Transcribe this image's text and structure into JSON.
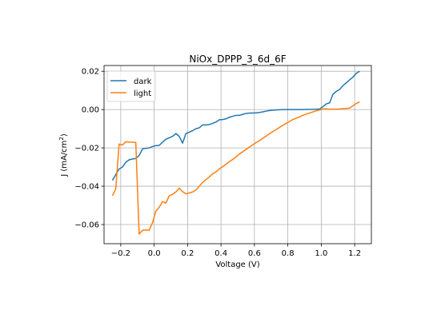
{
  "chart_data": {
    "type": "line",
    "title": "NiOx_DPPP_3_6d_6F",
    "xlabel": "Voltage (V)",
    "ylabel_main": "J (mA/cm",
    "ylabel_sup": "2",
    "ylabel_close": ")",
    "xlim": [
      -0.3,
      1.3
    ],
    "ylim": [
      -0.07,
      0.023
    ],
    "xticks": [
      -0.2,
      0.0,
      0.2,
      0.4,
      0.6,
      0.8,
      1.0,
      1.2
    ],
    "xtick_labels": [
      "−0.2",
      "0.0",
      "0.2",
      "0.4",
      "0.6",
      "0.8",
      "1.0",
      "1.2"
    ],
    "yticks": [
      -0.06,
      -0.04,
      -0.02,
      0.0,
      0.02
    ],
    "ytick_labels": [
      "−0.06",
      "−0.04",
      "−0.02",
      "0.00",
      "0.02"
    ],
    "grid": true,
    "legend_position": "top-left",
    "series": [
      {
        "name": "dark",
        "color": "#1f77b4",
        "points": [
          [
            -0.25,
            -0.037
          ],
          [
            -0.23,
            -0.034
          ],
          [
            -0.21,
            -0.031
          ],
          [
            -0.19,
            -0.03
          ],
          [
            -0.17,
            -0.0275
          ],
          [
            -0.15,
            -0.0262
          ],
          [
            -0.13,
            -0.0258
          ],
          [
            -0.11,
            -0.0255
          ],
          [
            -0.09,
            -0.024
          ],
          [
            -0.07,
            -0.0205
          ],
          [
            -0.05,
            -0.0202
          ],
          [
            -0.03,
            -0.02
          ],
          [
            -0.01,
            -0.0193
          ],
          [
            0.01,
            -0.0188
          ],
          [
            0.03,
            -0.0187
          ],
          [
            0.05,
            -0.017
          ],
          [
            0.07,
            -0.0155
          ],
          [
            0.09,
            -0.0147
          ],
          [
            0.11,
            -0.014
          ],
          [
            0.13,
            -0.0125
          ],
          [
            0.15,
            -0.014
          ],
          [
            0.17,
            -0.0175
          ],
          [
            0.19,
            -0.0125
          ],
          [
            0.21,
            -0.0118
          ],
          [
            0.23,
            -0.011
          ],
          [
            0.25,
            -0.01
          ],
          [
            0.27,
            -0.0095
          ],
          [
            0.29,
            -0.008
          ],
          [
            0.31,
            -0.008
          ],
          [
            0.33,
            -0.0078
          ],
          [
            0.35,
            -0.0072
          ],
          [
            0.37,
            -0.0065
          ],
          [
            0.39,
            -0.0053
          ],
          [
            0.41,
            -0.0052
          ],
          [
            0.43,
            -0.0048
          ],
          [
            0.45,
            -0.004
          ],
          [
            0.47,
            -0.0035
          ],
          [
            0.49,
            -0.003
          ],
          [
            0.51,
            -0.003
          ],
          [
            0.53,
            -0.0025
          ],
          [
            0.55,
            -0.002
          ],
          [
            0.57,
            -0.0018
          ],
          [
            0.59,
            -0.0018
          ],
          [
            0.61,
            -0.0017
          ],
          [
            0.63,
            -0.0015
          ],
          [
            0.65,
            -0.0012
          ],
          [
            0.67,
            -0.0008
          ],
          [
            0.69,
            -0.0005
          ],
          [
            0.71,
            -0.0003
          ],
          [
            0.73,
            -0.0002
          ],
          [
            0.75,
            -0.0001
          ],
          [
            0.77,
            0.0
          ],
          [
            0.79,
            0.0
          ],
          [
            0.81,
            0.0
          ],
          [
            0.83,
            0.0
          ],
          [
            0.85,
            0.0
          ],
          [
            0.87,
            0.0
          ],
          [
            0.89,
            0.0
          ],
          [
            0.91,
            0.0001
          ],
          [
            0.93,
            0.0001
          ],
          [
            0.95,
            0.0001
          ],
          [
            0.97,
            0.0002
          ],
          [
            0.99,
            0.0003
          ],
          [
            1.01,
            0.0015
          ],
          [
            1.03,
            0.003
          ],
          [
            1.05,
            0.0035
          ],
          [
            1.07,
            0.008
          ],
          [
            1.09,
            0.0095
          ],
          [
            1.11,
            0.0105
          ],
          [
            1.13,
            0.0125
          ],
          [
            1.15,
            0.014
          ],
          [
            1.17,
            0.0155
          ],
          [
            1.19,
            0.017
          ],
          [
            1.21,
            0.019
          ],
          [
            1.23,
            0.02
          ]
        ]
      },
      {
        "name": "light",
        "color": "#ff7f0e",
        "points": [
          [
            -0.25,
            -0.045
          ],
          [
            -0.23,
            -0.0415
          ],
          [
            -0.21,
            -0.018
          ],
          [
            -0.19,
            -0.0185
          ],
          [
            -0.17,
            -0.0168
          ],
          [
            -0.15,
            -0.017
          ],
          [
            -0.13,
            -0.017
          ],
          [
            -0.11,
            -0.0172
          ],
          [
            -0.09,
            -0.065
          ],
          [
            -0.07,
            -0.063
          ],
          [
            -0.05,
            -0.0628
          ],
          [
            -0.03,
            -0.063
          ],
          [
            -0.01,
            -0.059
          ],
          [
            0.01,
            -0.053
          ],
          [
            0.03,
            -0.051
          ],
          [
            0.05,
            -0.048
          ],
          [
            0.07,
            -0.0488
          ],
          [
            0.09,
            -0.045
          ],
          [
            0.11,
            -0.0442
          ],
          [
            0.13,
            -0.043
          ],
          [
            0.15,
            -0.041
          ],
          [
            0.17,
            -0.0428
          ],
          [
            0.19,
            -0.044
          ],
          [
            0.21,
            -0.0435
          ],
          [
            0.23,
            -0.043
          ],
          [
            0.25,
            -0.042
          ],
          [
            0.27,
            -0.04
          ],
          [
            0.29,
            -0.038
          ],
          [
            0.31,
            -0.0365
          ],
          [
            0.33,
            -0.0352
          ],
          [
            0.35,
            -0.0335
          ],
          [
            0.37,
            -0.0325
          ],
          [
            0.39,
            -0.031
          ],
          [
            0.41,
            -0.0298
          ],
          [
            0.43,
            -0.0285
          ],
          [
            0.45,
            -0.0272
          ],
          [
            0.47,
            -0.026
          ],
          [
            0.49,
            -0.0247
          ],
          [
            0.51,
            -0.0232
          ],
          [
            0.53,
            -0.022
          ],
          [
            0.55,
            -0.0208
          ],
          [
            0.57,
            -0.0196
          ],
          [
            0.59,
            -0.0184
          ],
          [
            0.61,
            -0.0172
          ],
          [
            0.63,
            -0.0162
          ],
          [
            0.65,
            -0.015
          ],
          [
            0.67,
            -0.0138
          ],
          [
            0.69,
            -0.0126
          ],
          [
            0.71,
            -0.0115
          ],
          [
            0.73,
            -0.0104
          ],
          [
            0.75,
            -0.0093
          ],
          [
            0.77,
            -0.0082
          ],
          [
            0.79,
            -0.0072
          ],
          [
            0.81,
            -0.0062
          ],
          [
            0.83,
            -0.0052
          ],
          [
            0.85,
            -0.0045
          ],
          [
            0.87,
            -0.0038
          ],
          [
            0.89,
            -0.003
          ],
          [
            0.91,
            -0.0024
          ],
          [
            0.93,
            -0.0018
          ],
          [
            0.95,
            -0.0012
          ],
          [
            0.97,
            -0.0006
          ],
          [
            0.99,
            -0.0002
          ],
          [
            1.01,
            0.0003
          ],
          [
            1.03,
            0.0004
          ],
          [
            1.05,
            0.0002
          ],
          [
            1.07,
            0.0002
          ],
          [
            1.09,
            0.0002
          ],
          [
            1.11,
            0.0003
          ],
          [
            1.13,
            0.0005
          ],
          [
            1.15,
            0.0006
          ],
          [
            1.17,
            0.0008
          ],
          [
            1.19,
            0.002
          ],
          [
            1.21,
            0.0032
          ],
          [
            1.23,
            0.004
          ]
        ]
      }
    ]
  }
}
